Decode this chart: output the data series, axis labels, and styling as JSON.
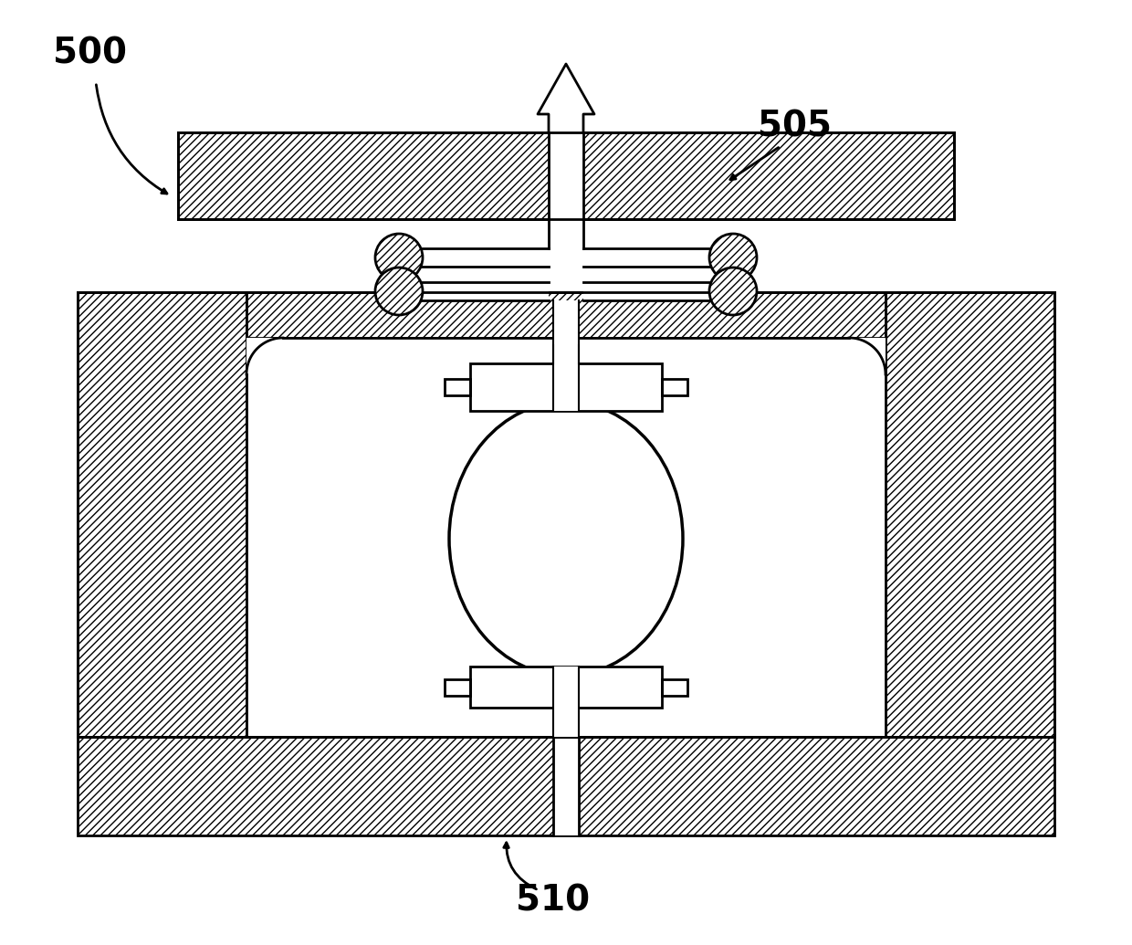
{
  "bg_color": "#ffffff",
  "lw": 2.0,
  "lw_med": 1.5,
  "lw_thin": 1.0,
  "label_500": "500",
  "label_505": "505",
  "label_510": "510",
  "fig_width": 12.4,
  "fig_height": 10.35,
  "dpi": 100
}
